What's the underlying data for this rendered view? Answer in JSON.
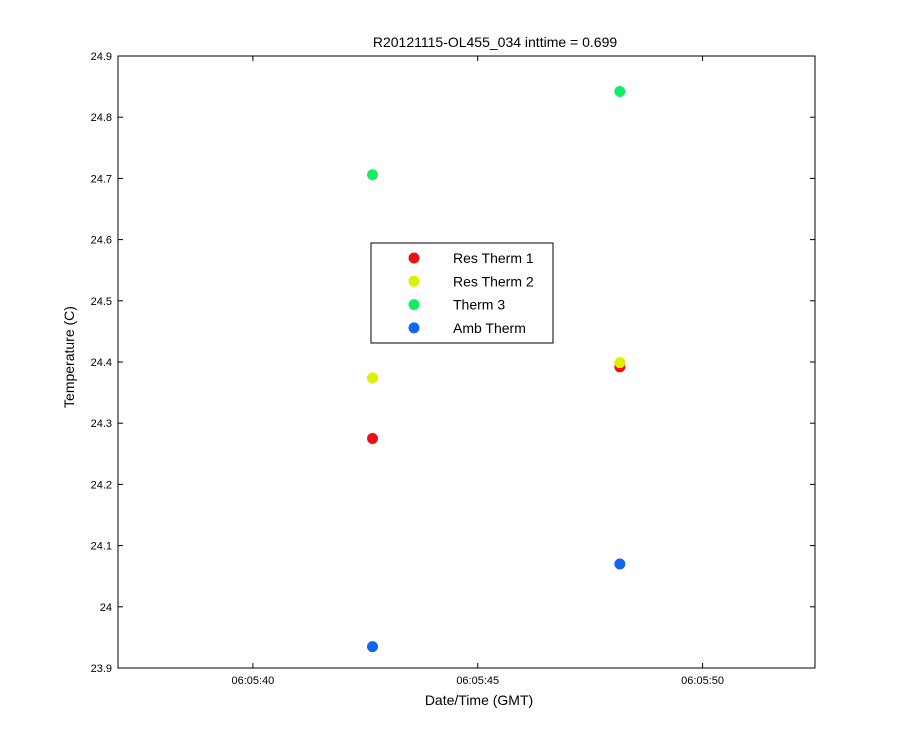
{
  "chart_data": {
    "type": "scatter",
    "title": "R20121115-OL455_034 inttime = 0.699",
    "xlabel": "Date/Time (GMT)",
    "ylabel": "Temperature (C)",
    "x_tick_labels": [
      "06:05:40",
      "06:05:45",
      "06:05:50"
    ],
    "x_tick_values": [
      "06:05:40",
      "06:05:45",
      "06:05:50"
    ],
    "y_tick_labels": [
      "23.9",
      "24",
      "24.1",
      "24.2",
      "24.3",
      "24.4",
      "24.5",
      "24.6",
      "24.7",
      "24.8",
      "24.9"
    ],
    "xlim": [
      "06:05:37",
      "06:05:52.5"
    ],
    "ylim": [
      23.9,
      24.9
    ],
    "grid": false,
    "legend_position": "center",
    "series": [
      {
        "name": "Res Therm 1",
        "color": "#ee1111",
        "points": [
          {
            "x": "06:05:42.66",
            "y": 24.275
          },
          {
            "x": "06:05:48.16",
            "y": 24.392
          }
        ]
      },
      {
        "name": "Res Therm 2",
        "color": "#ddf000",
        "points": [
          {
            "x": "06:05:42.66",
            "y": 24.374
          },
          {
            "x": "06:05:48.16",
            "y": 24.399
          }
        ]
      },
      {
        "name": "Therm 3",
        "color": "#11ee66",
        "points": [
          {
            "x": "06:05:42.66",
            "y": 24.706
          },
          {
            "x": "06:05:48.16",
            "y": 24.842
          }
        ]
      },
      {
        "name": "Amb Therm",
        "color": "#1166ee",
        "points": [
          {
            "x": "06:05:42.66",
            "y": 23.935
          },
          {
            "x": "06:05:48.16",
            "y": 24.07
          }
        ]
      }
    ]
  }
}
